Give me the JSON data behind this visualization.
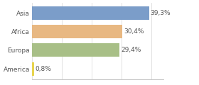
{
  "categories": [
    "Asia",
    "Africa",
    "Europa",
    "America"
  ],
  "values": [
    39.3,
    30.4,
    29.4,
    0.8
  ],
  "labels": [
    "39,3%",
    "30,4%",
    "29,4%",
    "0,8%"
  ],
  "bar_colors": [
    "#7b9dc9",
    "#e8b882",
    "#a8bf87",
    "#e8d44d"
  ],
  "xlim": [
    0,
    44
  ],
  "background_color": "#ffffff",
  "bar_height": 0.72,
  "label_fontsize": 6.5,
  "ytick_fontsize": 6.5,
  "grid_color": "#dddddd",
  "spine_color": "#bbbbbb",
  "text_color": "#555555"
}
